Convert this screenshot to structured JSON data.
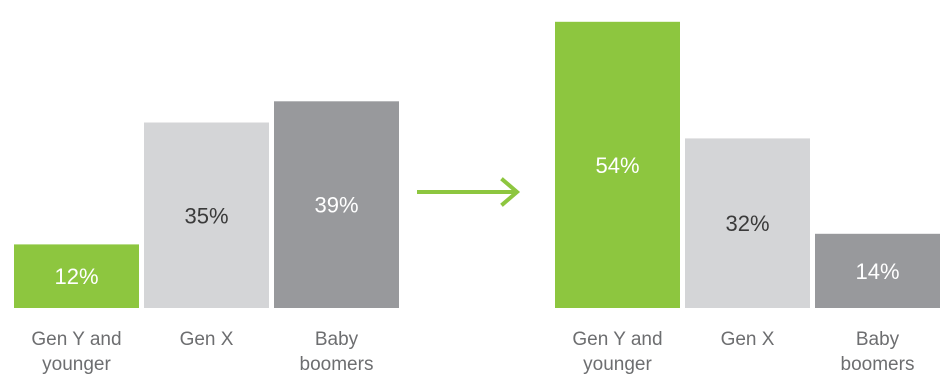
{
  "chart_data": [
    {
      "type": "bar",
      "categories": [
        "Gen Y and younger",
        "Gen X",
        "Baby boomers"
      ],
      "category_lines": [
        [
          "Gen Y and",
          "younger"
        ],
        [
          "Gen X"
        ],
        [
          "Baby",
          "boomers"
        ]
      ],
      "values": [
        12,
        35,
        39
      ],
      "value_labels": [
        "12%",
        "35%",
        "39%"
      ],
      "unit": "%",
      "ylim": [
        0,
        60
      ],
      "grid": false,
      "title": "",
      "xlabel": "",
      "ylabel": ""
    },
    {
      "type": "bar",
      "categories": [
        "Gen Y and younger",
        "Gen X",
        "Baby boomers"
      ],
      "category_lines": [
        [
          "Gen Y and",
          "younger"
        ],
        [
          "Gen X"
        ],
        [
          "Baby",
          "boomers"
        ]
      ],
      "values": [
        54,
        32,
        14
      ],
      "value_labels": [
        "54%",
        "32%",
        "14%"
      ],
      "unit": "%",
      "ylim": [
        0,
        60
      ],
      "grid": false,
      "title": "",
      "xlabel": "",
      "ylabel": ""
    }
  ],
  "colors": {
    "gen_y": "#8dc63f",
    "gen_x": "#d4d5d7",
    "boomers": "#98999c",
    "arrow": "#8dc63f",
    "value_label_on_dark": "#ffffff",
    "value_label_on_light": "#3a3a3a",
    "category_label": "#6d6e70"
  },
  "arrow_icon": "right-arrow-icon"
}
